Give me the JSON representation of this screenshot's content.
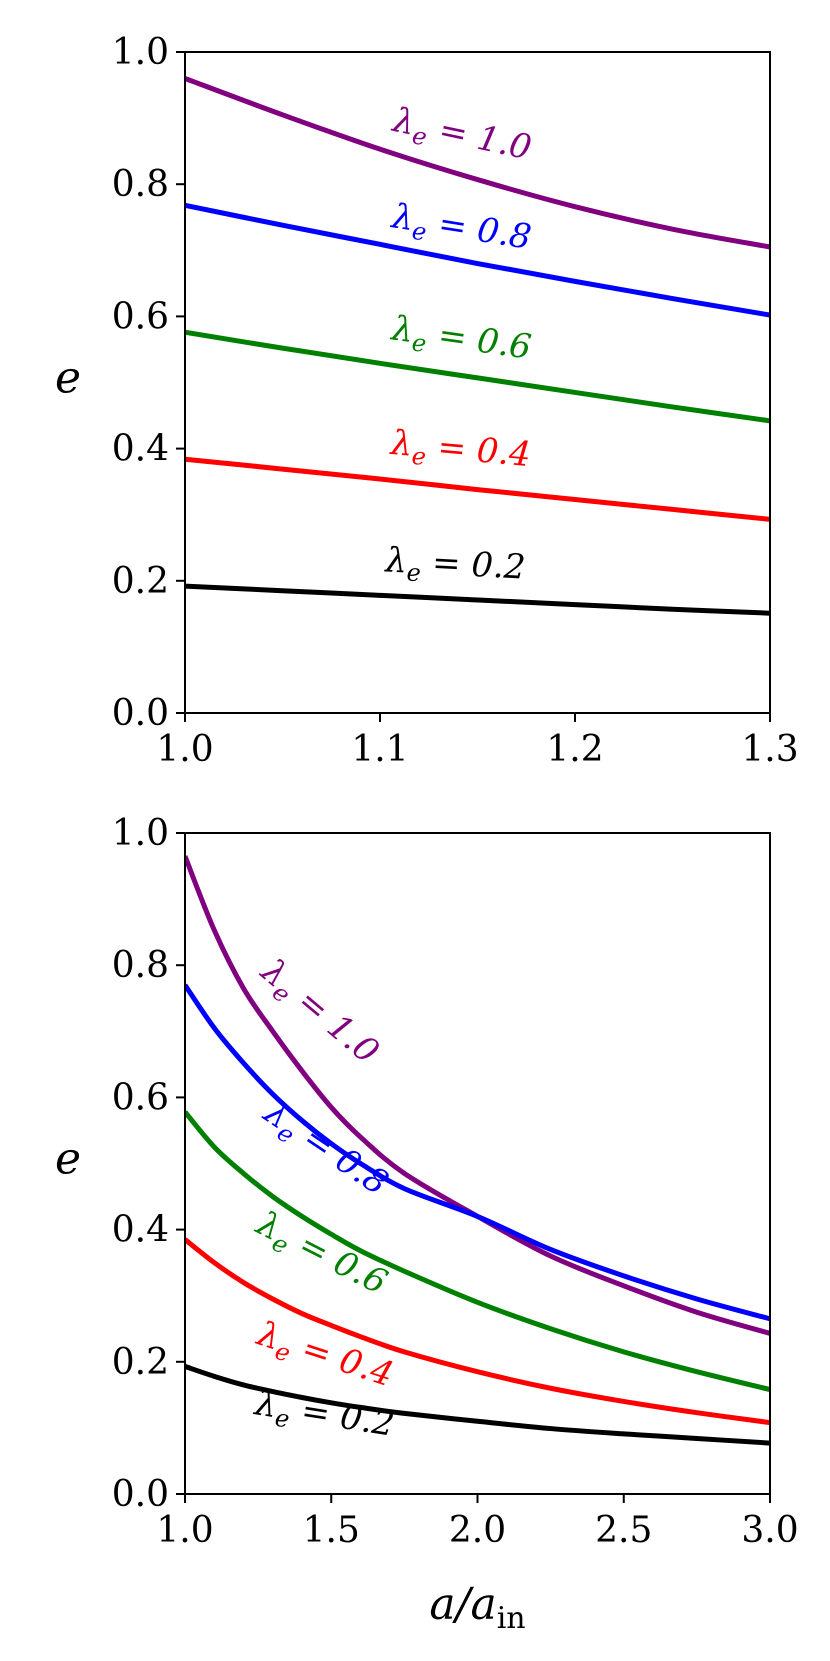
{
  "chart_data": [
    {
      "type": "line",
      "xlabel": "",
      "ylabel": "e",
      "xlim": [
        1.0,
        1.3
      ],
      "ylim": [
        0.0,
        1.0
      ],
      "xticks": [
        "1.0",
        "1.1",
        "1.2",
        "1.3"
      ],
      "yticks": [
        "0.0",
        "0.2",
        "0.4",
        "0.6",
        "0.8",
        "1.0"
      ],
      "grid": false,
      "series": [
        {
          "label": "λe = 1.0",
          "lambda": 1.0,
          "color": "#800080",
          "x": [
            1.0,
            1.05,
            1.1,
            1.15,
            1.2,
            1.25,
            1.3
          ],
          "y": [
            0.96,
            0.905,
            0.853,
            0.807,
            0.766,
            0.732,
            0.705
          ]
        },
        {
          "label": "λe = 0.8",
          "lambda": 0.8,
          "color": "#0000ff",
          "x": [
            1.0,
            1.05,
            1.1,
            1.15,
            1.2,
            1.25,
            1.3
          ],
          "y": [
            0.768,
            0.738,
            0.709,
            0.68,
            0.653,
            0.627,
            0.602
          ]
        },
        {
          "label": "λe = 0.6",
          "lambda": 0.6,
          "color": "#008000",
          "x": [
            1.0,
            1.05,
            1.1,
            1.15,
            1.2,
            1.25,
            1.3
          ],
          "y": [
            0.576,
            0.552,
            0.529,
            0.507,
            0.485,
            0.463,
            0.442
          ]
        },
        {
          "label": "λe = 0.4",
          "lambda": 0.4,
          "color": "#ff0000",
          "x": [
            1.0,
            1.05,
            1.1,
            1.15,
            1.2,
            1.25,
            1.3
          ],
          "y": [
            0.384,
            0.369,
            0.354,
            0.338,
            0.323,
            0.308,
            0.293
          ]
        },
        {
          "label": "λe = 0.2",
          "lambda": 0.2,
          "color": "#000000",
          "x": [
            1.0,
            1.05,
            1.1,
            1.15,
            1.2,
            1.25,
            1.3
          ],
          "y": [
            0.192,
            0.185,
            0.178,
            0.171,
            0.164,
            0.157,
            0.151
          ]
        }
      ]
    },
    {
      "type": "line",
      "xlabel": "a/a_in",
      "ylabel": "e",
      "xlim": [
        1.0,
        3.0
      ],
      "ylim": [
        0.0,
        1.0
      ],
      "xticks": [
        "1.0",
        "1.5",
        "2.0",
        "2.5",
        "3.0"
      ],
      "yticks": [
        "0.0",
        "0.2",
        "0.4",
        "0.6",
        "0.8",
        "1.0"
      ],
      "grid": false,
      "series": [
        {
          "label": "λe = 1.0",
          "lambda": 1.0,
          "color": "#800080",
          "x": [
            1.0,
            1.1,
            1.2,
            1.3,
            1.4,
            1.5,
            1.6,
            1.75,
            2.0,
            2.25,
            2.5,
            2.75,
            3.0
          ],
          "y": [
            0.965,
            0.853,
            0.765,
            0.7,
            0.64,
            0.585,
            0.54,
            0.485,
            0.42,
            0.36,
            0.315,
            0.275,
            0.243
          ]
        },
        {
          "label": "λe = 0.8",
          "lambda": 0.8,
          "color": "#0000ff",
          "x": [
            1.0,
            1.1,
            1.2,
            1.3,
            1.4,
            1.5,
            1.6,
            1.75,
            2.0,
            2.25,
            2.5,
            2.75,
            3.0
          ],
          "y": [
            0.77,
            0.705,
            0.652,
            0.605,
            0.565,
            0.53,
            0.5,
            0.462,
            0.42,
            0.37,
            0.33,
            0.295,
            0.265
          ]
        },
        {
          "label": "λe = 0.6",
          "lambda": 0.6,
          "color": "#008000",
          "x": [
            1.0,
            1.1,
            1.2,
            1.3,
            1.4,
            1.5,
            1.6,
            1.75,
            2.0,
            2.25,
            2.5,
            2.75,
            3.0
          ],
          "y": [
            0.578,
            0.525,
            0.485,
            0.45,
            0.42,
            0.393,
            0.368,
            0.337,
            0.29,
            0.25,
            0.215,
            0.185,
            0.158
          ]
        },
        {
          "label": "λe = 0.4",
          "lambda": 0.4,
          "color": "#ff0000",
          "x": [
            1.0,
            1.1,
            1.2,
            1.3,
            1.4,
            1.5,
            1.6,
            1.75,
            2.0,
            2.25,
            2.5,
            2.75,
            3.0
          ],
          "y": [
            0.385,
            0.35,
            0.32,
            0.295,
            0.273,
            0.255,
            0.238,
            0.215,
            0.185,
            0.16,
            0.14,
            0.123,
            0.108
          ]
        },
        {
          "label": "λe = 0.2",
          "lambda": 0.2,
          "color": "#000000",
          "x": [
            1.0,
            1.1,
            1.2,
            1.3,
            1.4,
            1.5,
            1.6,
            1.75,
            2.0,
            2.25,
            2.5,
            2.75,
            3.0
          ],
          "y": [
            0.193,
            0.178,
            0.165,
            0.155,
            0.146,
            0.138,
            0.131,
            0.122,
            0.11,
            0.099,
            0.091,
            0.084,
            0.077
          ]
        }
      ]
    }
  ]
}
